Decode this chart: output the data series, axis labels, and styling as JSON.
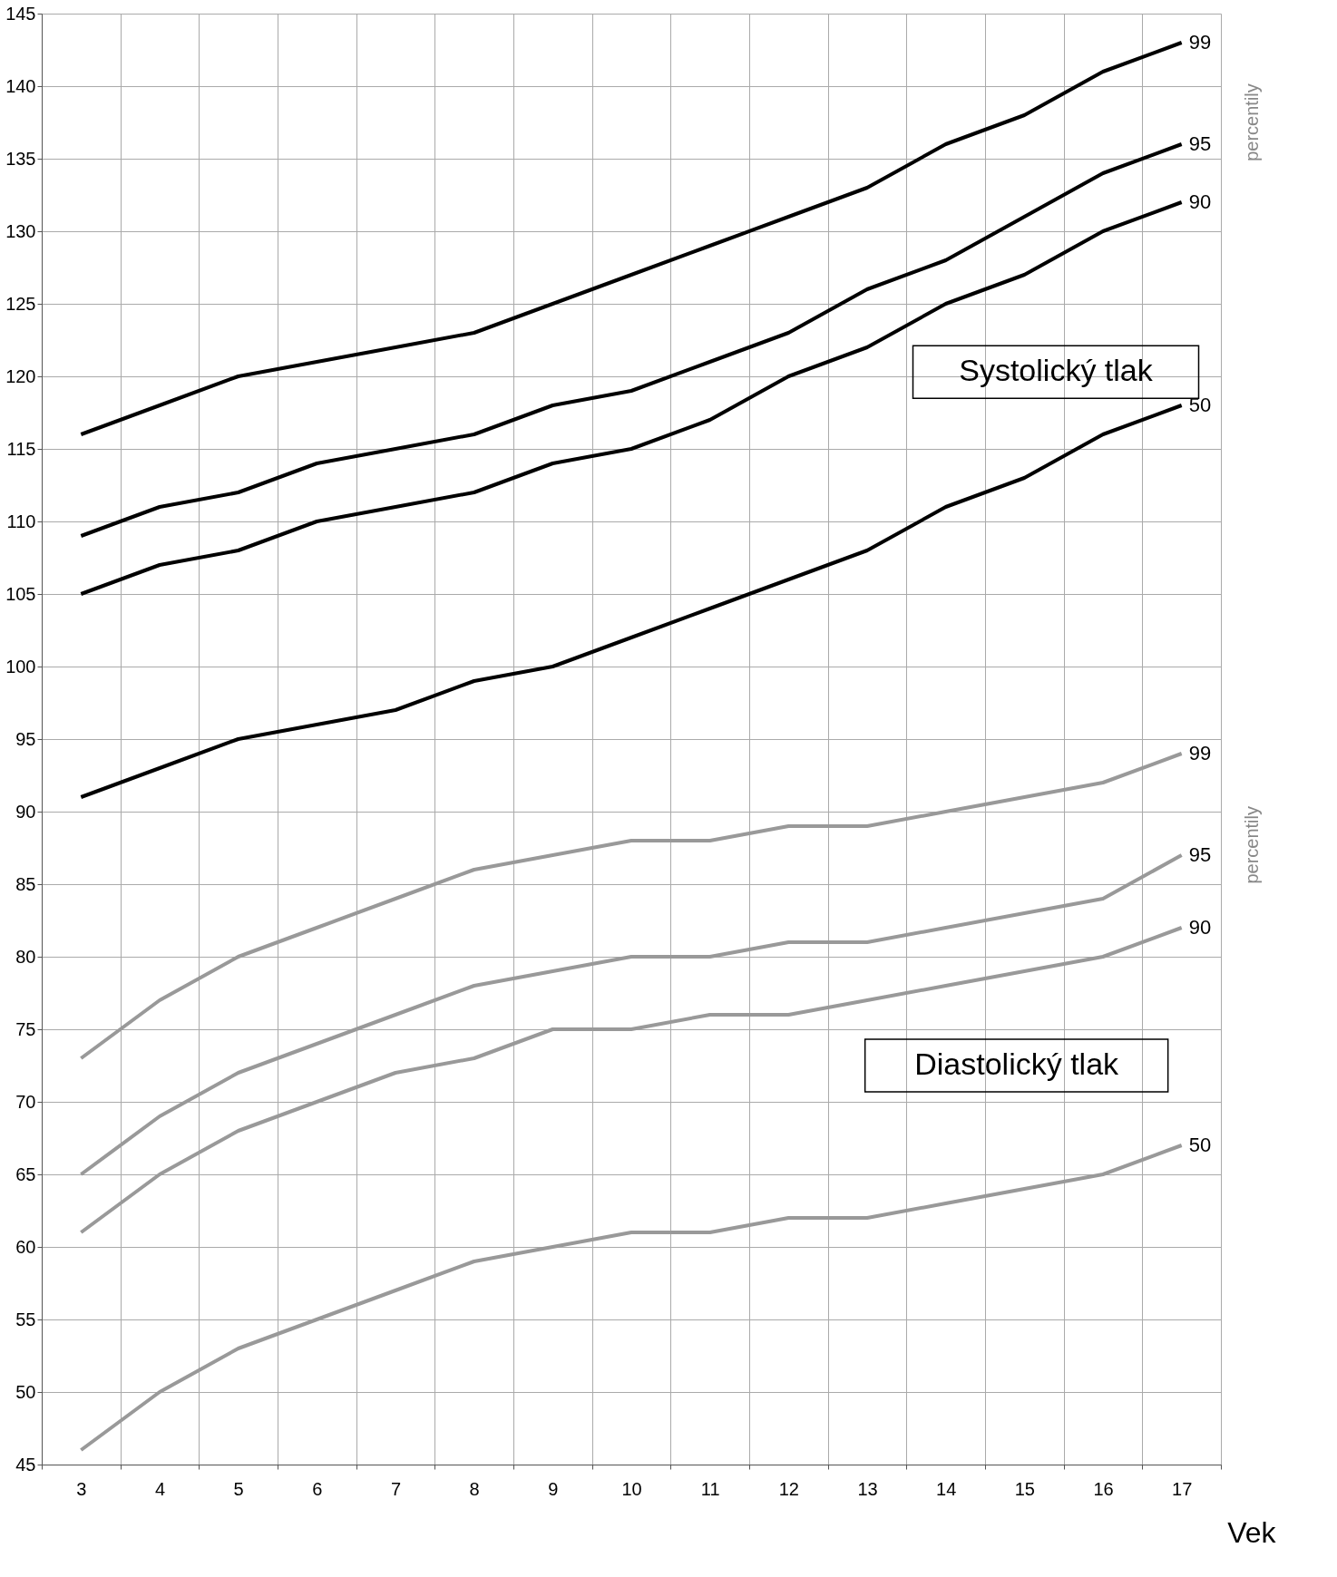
{
  "chart_data": {
    "type": "line",
    "xlabel": "Vek",
    "categories": [
      "3",
      "4",
      "5",
      "6",
      "7",
      "8",
      "9",
      "10",
      "11",
      "12",
      "13",
      "14",
      "15",
      "16",
      "17"
    ],
    "ylim": [
      45,
      145
    ],
    "yticks": [
      45,
      50,
      55,
      60,
      65,
      70,
      75,
      80,
      85,
      90,
      95,
      100,
      105,
      110,
      115,
      120,
      125,
      130,
      135,
      140,
      145
    ],
    "grid": true,
    "line_style": "solid",
    "series": [
      {
        "name": "99",
        "color": "#000000",
        "values": [
          116,
          118,
          120,
          121,
          122,
          123,
          125,
          127,
          129,
          131,
          133,
          136,
          138,
          141,
          143
        ]
      },
      {
        "name": "95",
        "color": "#000000",
        "values": [
          109,
          111,
          112,
          114,
          115,
          116,
          118,
          119,
          121,
          123,
          126,
          128,
          131,
          134,
          136
        ]
      },
      {
        "name": "90",
        "color": "#000000",
        "values": [
          105,
          107,
          108,
          110,
          111,
          112,
          114,
          115,
          117,
          120,
          122,
          125,
          127,
          130,
          132
        ]
      },
      {
        "name": "50",
        "color": "#000000",
        "values": [
          91,
          93,
          95,
          96,
          97,
          99,
          100,
          102,
          104,
          106,
          108,
          111,
          113,
          116,
          118
        ]
      },
      {
        "name": "99",
        "color": "#999999",
        "values": [
          73,
          77,
          80,
          82,
          84,
          86,
          87,
          88,
          88,
          89,
          89,
          90,
          91,
          92,
          94
        ]
      },
      {
        "name": "95",
        "color": "#999999",
        "values": [
          65,
          69,
          72,
          74,
          76,
          78,
          79,
          80,
          80,
          81,
          81,
          82,
          83,
          84,
          87
        ]
      },
      {
        "name": "90",
        "color": "#999999",
        "values": [
          61,
          65,
          68,
          70,
          72,
          73,
          75,
          75,
          76,
          76,
          77,
          78,
          79,
          80,
          82
        ]
      },
      {
        "name": "50",
        "color": "#999999",
        "values": [
          46,
          50,
          53,
          55,
          57,
          59,
          60,
          61,
          61,
          62,
          62,
          63,
          64,
          65,
          67
        ]
      }
    ],
    "annotations": [
      "Systolický tlak",
      "Diastolický tlak",
      "percentily",
      "percentily"
    ]
  }
}
